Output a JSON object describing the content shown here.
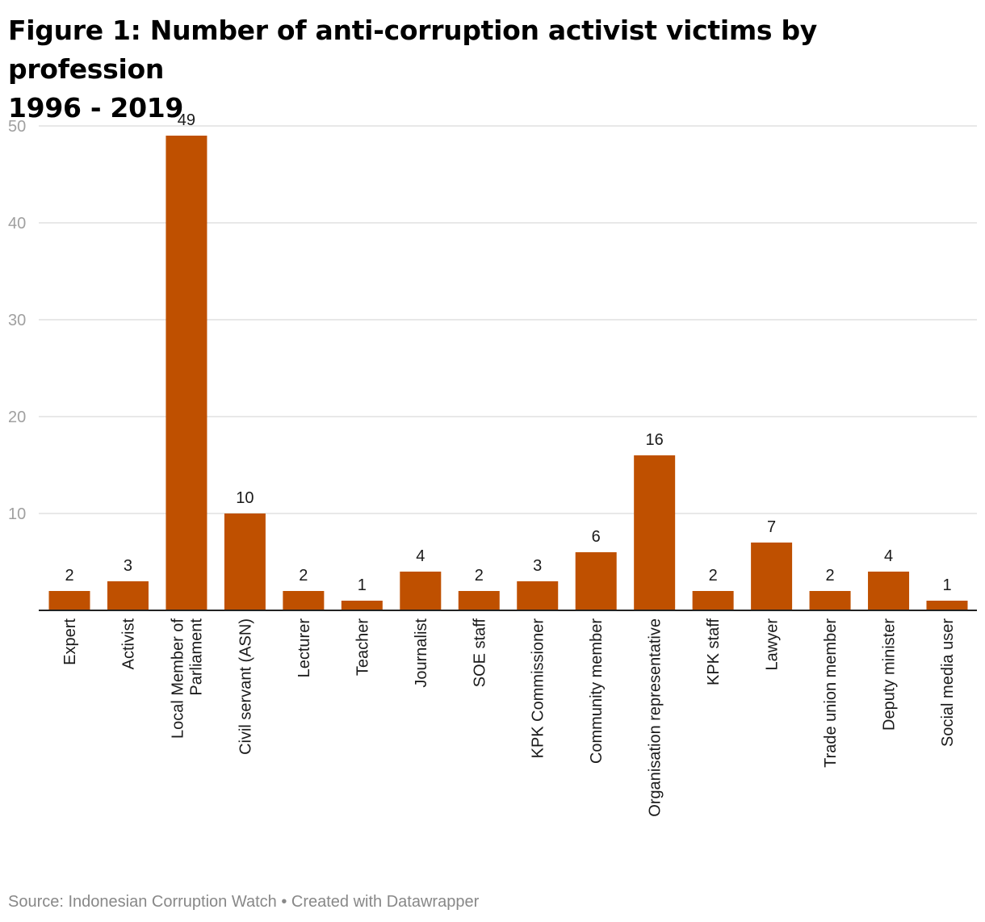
{
  "chart_data": {
    "type": "bar",
    "title": "Figure 1: Number of anti-corruption activist victims by profession 1996 - 2019",
    "categories": [
      "Expert",
      "Activist",
      "Local Member of Parliament",
      "Civil servant (ASN)",
      "Lecturer",
      "Teacher",
      "Journalist",
      "SOE staff",
      "KPK Commissioner",
      "Community member",
      "Organisation representative",
      "KPK staff",
      "Lawyer",
      "Trade union member",
      "Deputy minister",
      "Social media user"
    ],
    "category_label_lines": [
      [
        "Expert"
      ],
      [
        "Activist"
      ],
      [
        "Local Member of",
        "Parliament"
      ],
      [
        "Civil servant (ASN)"
      ],
      [
        "Lecturer"
      ],
      [
        "Teacher"
      ],
      [
        "Journalist"
      ],
      [
        "SOE staff"
      ],
      [
        "KPK Commissioner"
      ],
      [
        "Community member"
      ],
      [
        "Organisation representative"
      ],
      [
        "KPK staff"
      ],
      [
        "Lawyer"
      ],
      [
        "Trade union member"
      ],
      [
        "Deputy minister"
      ],
      [
        "Social media user"
      ]
    ],
    "values": [
      2,
      3,
      49,
      10,
      2,
      1,
      4,
      2,
      3,
      6,
      16,
      2,
      7,
      2,
      4,
      1
    ],
    "xlabel": "",
    "ylabel": "",
    "ylim": [
      0,
      50
    ],
    "yticks": [
      10,
      20,
      30,
      40,
      50
    ],
    "grid": true,
    "data_labels": true,
    "bar_color": "#bf5000",
    "legend": "none"
  },
  "header": {
    "title_line1": "Figure 1: Number of anti-corruption activist victims by profession",
    "title_line2": "1996 - 2019"
  },
  "footer": {
    "text": "Source: Indonesian Corruption Watch • Created with Datawrapper"
  }
}
